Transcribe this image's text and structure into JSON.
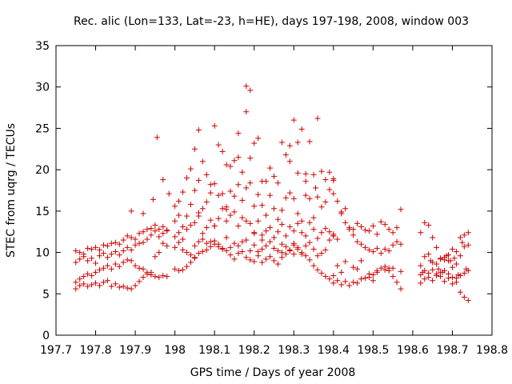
{
  "chart_data": {
    "type": "scatter",
    "title": "Rec. alic (Lon=133, Lat=-23, h=HE), days 197-198, 2008, window 003",
    "xlabel": "GPS time / Days of year 2008",
    "ylabel": "STEC from uqrg / TECUs",
    "xlim": [
      197.7,
      198.8
    ],
    "ylim": [
      0,
      35
    ],
    "xticks": [
      "197.7",
      "197.8",
      "197.9",
      "198",
      "198.1",
      "198.2",
      "198.3",
      "198.4",
      "198.5",
      "198.6",
      "198.7",
      "198.8"
    ],
    "yticks": [
      "0",
      "5",
      "10",
      "15",
      "20",
      "25",
      "30",
      "35"
    ],
    "grid": false,
    "marker": "plus",
    "marker_color": "#cc0000",
    "series": [
      {
        "x": [
          197.75,
          197.76,
          197.77,
          197.78,
          197.79,
          197.8,
          197.81,
          197.82,
          197.83,
          197.84,
          197.85,
          197.86,
          197.87,
          197.88,
          197.89,
          197.9,
          197.91,
          197.92,
          197.93,
          197.94,
          197.95,
          197.96,
          197.97,
          197.98,
          197.75,
          197.76,
          197.77,
          197.78,
          197.79,
          197.8,
          197.81,
          197.82,
          197.83,
          197.84,
          197.85,
          197.86,
          197.87,
          197.88,
          197.89,
          197.9,
          197.91,
          197.92,
          197.93,
          197.94,
          197.95,
          197.96,
          197.97,
          197.98,
          197.75,
          197.76,
          197.77,
          197.78,
          197.79,
          197.8,
          197.81,
          197.82,
          197.83,
          197.84,
          197.85,
          197.86,
          197.87,
          197.88,
          197.89,
          197.9,
          197.91,
          197.92,
          197.93,
          197.94,
          197.95,
          197.96,
          197.97,
          197.98,
          197.75,
          197.76,
          197.77,
          197.78,
          197.79,
          197.8,
          197.81,
          197.82,
          197.83,
          197.84,
          197.85,
          197.86,
          197.87,
          197.88,
          197.89,
          197.9,
          197.91,
          197.92,
          197.93,
          197.94,
          197.95,
          197.96,
          197.97,
          197.98,
          197.89,
          197.92,
          197.945,
          197.955,
          197.97,
          197.985,
          198.0,
          198.01,
          198.02,
          198.03,
          198.04,
          198.05,
          198.06,
          198.07,
          198.08,
          198.09,
          198.1,
          198.11,
          198.12,
          198.13,
          198.14,
          198.15,
          198.16,
          198.17,
          198.18,
          198.19,
          198.2,
          198.21,
          198.22,
          198.23,
          198.24,
          198.25,
          198.26,
          198.27,
          198.28,
          198.29,
          198.3,
          198.31,
          198.32,
          198.33,
          198.34,
          198.35,
          198.36,
          198.37,
          198.38,
          198.39,
          198.4,
          198.0,
          198.01,
          198.02,
          198.03,
          198.04,
          198.05,
          198.06,
          198.07,
          198.08,
          198.09,
          198.1,
          198.11,
          198.12,
          198.13,
          198.14,
          198.15,
          198.16,
          198.17,
          198.18,
          198.19,
          198.2,
          198.21,
          198.22,
          198.23,
          198.24,
          198.25,
          198.26,
          198.27,
          198.28,
          198.29,
          198.3,
          198.31,
          198.32,
          198.33,
          198.34,
          198.35,
          198.36,
          198.37,
          198.38,
          198.39,
          198.4,
          198.0,
          198.01,
          198.02,
          198.03,
          198.04,
          198.05,
          198.06,
          198.07,
          198.08,
          198.09,
          198.1,
          198.11,
          198.12,
          198.13,
          198.14,
          198.15,
          198.16,
          198.17,
          198.18,
          198.19,
          198.2,
          198.21,
          198.22,
          198.23,
          198.24,
          198.25,
          198.26,
          198.27,
          198.28,
          198.29,
          198.3,
          198.31,
          198.32,
          198.33,
          198.34,
          198.35,
          198.36,
          198.37,
          198.38,
          198.39,
          198.4,
          198.0,
          198.01,
          198.02,
          198.03,
          198.04,
          198.05,
          198.06,
          198.07,
          198.08,
          198.09,
          198.1,
          198.11,
          198.12,
          198.13,
          198.14,
          198.15,
          198.16,
          198.17,
          198.18,
          198.19,
          198.2,
          198.21,
          198.22,
          198.23,
          198.24,
          198.25,
          198.26,
          198.27,
          198.28,
          198.29,
          198.3,
          198.31,
          198.32,
          198.33,
          198.34,
          198.35,
          198.36,
          198.37,
          198.38,
          198.39,
          198.4,
          198.0,
          198.01,
          198.02,
          198.03,
          198.04,
          198.05,
          198.06,
          198.07,
          198.08,
          198.09,
          198.1,
          198.11,
          198.12,
          198.13,
          198.14,
          198.15,
          198.16,
          198.17,
          198.18,
          198.19,
          198.2,
          198.21,
          198.22,
          198.23,
          198.24,
          198.25,
          198.26,
          198.27,
          198.28,
          198.29,
          198.3,
          198.31,
          198.32,
          198.33,
          198.34,
          198.35,
          198.36,
          198.37,
          198.38,
          198.39,
          198.4,
          198.18,
          198.19,
          198.16,
          198.29,
          198.355,
          198.31,
          198.33,
          198.06,
          198.1,
          198.2,
          198.22,
          198.27,
          198.3,
          198.05,
          198.13,
          198.4,
          198.41,
          198.42,
          198.43,
          198.44,
          198.45,
          198.46,
          198.47,
          198.48,
          198.49,
          198.5,
          198.51,
          198.52,
          198.53,
          198.54,
          198.55,
          198.56,
          198.57,
          198.4,
          198.41,
          198.42,
          198.43,
          198.44,
          198.45,
          198.46,
          198.47,
          198.48,
          198.49,
          198.5,
          198.51,
          198.52,
          198.53,
          198.54,
          198.55,
          198.56,
          198.57,
          198.4,
          198.41,
          198.42,
          198.43,
          198.44,
          198.45,
          198.46,
          198.47,
          198.48,
          198.49,
          198.5,
          198.51,
          198.52,
          198.53,
          198.54,
          198.55,
          198.56,
          198.57,
          198.41,
          198.43,
          198.45,
          198.47,
          198.49,
          198.51,
          198.53,
          198.55,
          198.57,
          198.42,
          198.46,
          198.5,
          198.54,
          198.62,
          198.63,
          198.64,
          198.65,
          198.66,
          198.67,
          198.68,
          198.69,
          198.7,
          198.71,
          198.72,
          198.73,
          198.74,
          198.62,
          198.63,
          198.64,
          198.65,
          198.66,
          198.67,
          198.68,
          198.69,
          198.7,
          198.71,
          198.72,
          198.73,
          198.74,
          198.62,
          198.63,
          198.64,
          198.65,
          198.66,
          198.67,
          198.68,
          198.69,
          198.7,
          198.71,
          198.72,
          198.73,
          198.74,
          198.62,
          198.63,
          198.64,
          198.65,
          198.66,
          198.67,
          198.68,
          198.69,
          198.7,
          198.71,
          198.72,
          198.73,
          198.74,
          198.625,
          198.645,
          198.665,
          198.685,
          198.705,
          198.725,
          198.735,
          198.715,
          198.695,
          198.675
        ],
        "y": [
          10.2,
          10.0,
          9.8,
          10.5,
          10.4,
          10.6,
          10.3,
          10.9,
          10.8,
          11.1,
          11.2,
          11.0,
          11.5,
          12.0,
          11.8,
          11.6,
          12.3,
          12.5,
          12.8,
          12.9,
          13.3,
          12.8,
          13.1,
          12.6,
          8.8,
          9.2,
          9.5,
          9.0,
          9.3,
          8.7,
          9.6,
          9.9,
          9.4,
          9.8,
          10.1,
          9.7,
          10.2,
          10.6,
          10.3,
          10.9,
          11.1,
          11.2,
          11.6,
          12.1,
          12.6,
          11.9,
          12.3,
          12.7,
          6.4,
          6.8,
          7.1,
          7.4,
          7.2,
          7.6,
          7.9,
          8.1,
          8.4,
          8.0,
          8.6,
          8.3,
          8.8,
          9.1,
          9.0,
          8.4,
          8.1,
          8.0,
          7.6,
          7.3,
          7.1,
          7.0,
          7.2,
          7.1,
          5.6,
          6.0,
          6.2,
          5.9,
          6.1,
          6.3,
          6.0,
          6.4,
          6.6,
          5.9,
          6.2,
          5.8,
          5.9,
          5.7,
          5.6,
          6.0,
          6.5,
          7.0,
          7.4,
          7.6,
          9.5,
          10.0,
          11.1,
          10.8,
          15.0,
          14.7,
          16.4,
          23.9,
          18.8,
          17.1,
          15.6,
          16.2,
          17.3,
          19.0,
          20.1,
          22.5,
          24.8,
          21.0,
          19.4,
          18.2,
          25.3,
          23.0,
          22.2,
          20.6,
          20.4,
          21.1,
          24.4,
          19.7,
          30.1,
          29.6,
          23.2,
          23.8,
          18.6,
          18.6,
          20.2,
          19.2,
          18.4,
          23.3,
          21.8,
          22.9,
          26.0,
          23.3,
          24.9,
          19.5,
          23.4,
          19.4,
          26.2,
          19.8,
          18.8,
          19.7,
          18.7,
          13.8,
          14.5,
          13.1,
          14.4,
          15.8,
          17.5,
          18.7,
          15.3,
          16.1,
          17.2,
          18.3,
          16.9,
          17.1,
          15.2,
          17.4,
          16.8,
          18.2,
          16.3,
          17.8,
          18.4,
          15.6,
          17.0,
          15.7,
          14.5,
          16.9,
          15.3,
          14.0,
          15.1,
          16.6,
          17.2,
          16.5,
          14.7,
          13.8,
          16.9,
          16.5,
          14.2,
          16.7,
          15.5,
          16.1,
          17.6,
          17.1,
          11.9,
          12.4,
          11.6,
          12.8,
          13.3,
          13.6,
          14.4,
          12.3,
          13.0,
          13.9,
          13.2,
          14.1,
          15.3,
          13.8,
          14.5,
          14.9,
          13.2,
          14.2,
          13.8,
          13.5,
          12.4,
          13.8,
          12.1,
          12.6,
          13.0,
          11.8,
          12.5,
          13.4,
          12.0,
          13.1,
          12.6,
          13.5,
          12.4,
          12.0,
          13.6,
          12.8,
          11.7,
          12.4,
          12.9,
          12.5,
          12.0,
          10.6,
          11.2,
          10.3,
          10.0,
          9.7,
          10.8,
          11.3,
          11.6,
          11.1,
          10.7,
          11.4,
          11.0,
          10.4,
          11.8,
          10.6,
          11.1,
          10.8,
          11.3,
          11.5,
          10.2,
          10.9,
          10.1,
          10.4,
          10.8,
          11.3,
          10.5,
          10.2,
          11.0,
          10.7,
          10.3,
          11.1,
          10.6,
          10.0,
          10.8,
          11.2,
          10.4,
          9.6,
          9.9,
          10.3,
          11.5,
          12.2,
          8.0,
          7.8,
          7.9,
          8.3,
          8.8,
          9.3,
          9.9,
          10.1,
          10.3,
          11.3,
          11.0,
          10.7,
          10.5,
          10.2,
          9.7,
          9.2,
          9.9,
          10.1,
          9.4,
          9.1,
          8.9,
          9.6,
          8.8,
          9.2,
          9.5,
          9.0,
          8.6,
          9.4,
          9.8,
          10.2,
          10.9,
          10.4,
          9.8,
          9.6,
          9.1,
          8.4,
          7.9,
          7.5,
          7.1,
          6.8,
          6.3,
          27.0,
          21.4,
          21.5,
          21.0,
          17.8,
          19.6,
          18.6,
          14.8,
          13.2,
          12.3,
          11.5,
          10.0,
          9.8,
          9.4,
          15.5,
          18.9,
          16.2,
          14.9,
          13.6,
          12.8,
          12.1,
          11.3,
          11.0,
          10.6,
          10.3,
          10.1,
          10.5,
          9.9,
          10.4,
          10.2,
          10.9,
          11.3,
          11.0,
          12.0,
          11.6,
          14.7,
          15.3,
          13.0,
          12.8,
          13.5,
          13.1,
          12.7,
          12.6,
          13.2,
          12.2,
          13.7,
          13.4,
          12.8,
          12.4,
          13.0,
          15.2,
          7.2,
          6.6,
          6.1,
          6.5,
          6.0,
          6.4,
          6.3,
          6.8,
          6.9,
          7.0,
          7.3,
          7.6,
          8.1,
          7.9,
          7.8,
          7.1,
          6.4,
          5.6,
          8.4,
          8.9,
          8.2,
          9.0,
          7.4,
          7.8,
          8.3,
          8.1,
          7.7,
          7.6,
          8.0,
          6.6,
          8.1,
          12.4,
          13.6,
          13.3,
          11.8,
          10.6,
          9.3,
          9.1,
          9.7,
          10.4,
          10.1,
          11.8,
          12.1,
          12.4,
          8.4,
          9.5,
          9.8,
          8.8,
          8.6,
          9.2,
          9.4,
          9.0,
          8.2,
          8.6,
          9.6,
          10.7,
          10.9,
          7.3,
          7.8,
          7.5,
          7.9,
          7.2,
          7.6,
          7.8,
          7.4,
          7.0,
          6.9,
          7.2,
          7.5,
          7.8,
          6.3,
          6.8,
          7.0,
          6.6,
          7.4,
          7.1,
          6.5,
          6.9,
          6.2,
          6.4,
          5.2,
          4.6,
          4.2,
          7.6,
          9.0,
          8.0,
          9.6,
          9.3,
          11.2,
          8.0,
          7.3,
          9.0,
          7.6
        ]
      }
    ]
  }
}
